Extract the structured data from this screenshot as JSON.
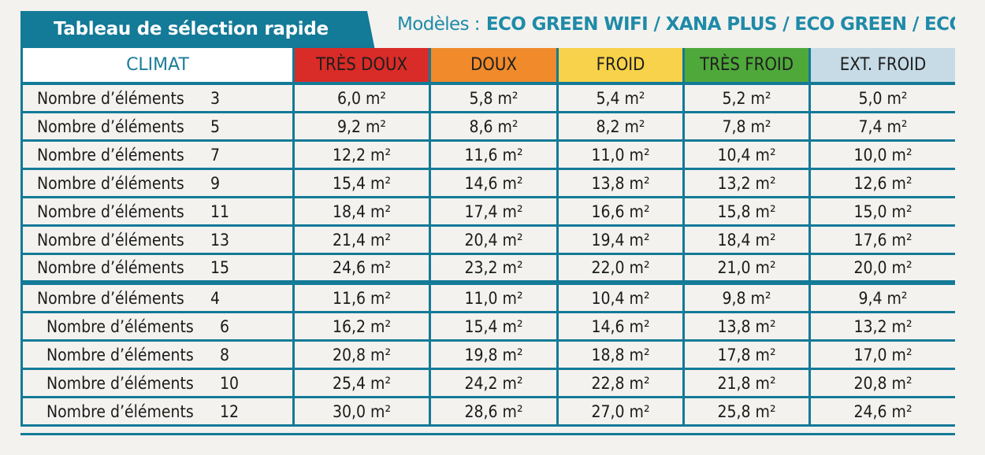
{
  "header": {
    "title": "Tableau de sélection rapide",
    "models_label": "Modèles :",
    "models_names": "ECO GREEN WIFI / XANA PLUS / ECO GREEN / ECO R"
  },
  "table": {
    "columns": [
      {
        "label": "CLIMAT",
        "color": "#ffffff"
      },
      {
        "label": "TRÈS DOUX",
        "color": "#d92b27"
      },
      {
        "label": "DOUX",
        "color": "#f08a2b"
      },
      {
        "label": "FROID",
        "color": "#f7d24a"
      },
      {
        "label": "TRÈS FROID",
        "color": "#4fa83a"
      },
      {
        "label": "EXT. FROID",
        "color": "#c6dbe6"
      }
    ],
    "rows": [
      {
        "label": "Nombre d’éléments",
        "n": "3",
        "values": [
          "6,0 m²",
          "5,8 m²",
          "5,4 m²",
          "5,2 m²",
          "5,0 m²"
        ]
      },
      {
        "label": "Nombre d’éléments",
        "n": "5",
        "values": [
          "9,2 m²",
          "8,6 m²",
          "8,2 m²",
          "7,8 m²",
          "7,4 m²"
        ]
      },
      {
        "label": "Nombre d’éléments",
        "n": "7",
        "values": [
          "12,2 m²",
          "11,6 m²",
          "11,0 m²",
          "10,4 m²",
          "10,0 m²"
        ]
      },
      {
        "label": "Nombre d’éléments",
        "n": "9",
        "values": [
          "15,4 m²",
          "14,6 m²",
          "13,8 m²",
          "13,2 m²",
          "12,6 m²"
        ]
      },
      {
        "label": "Nombre d’éléments",
        "n": "11",
        "values": [
          "18,4 m²",
          "17,4 m²",
          "16,6 m²",
          "15,8 m²",
          "15,0 m²"
        ]
      },
      {
        "label": "Nombre d’éléments",
        "n": "13",
        "values": [
          "21,4 m²",
          "20,4 m²",
          "19,4 m²",
          "18,4 m²",
          "17,6 m²"
        ]
      },
      {
        "label": "Nombre d’éléments",
        "n": "15",
        "values": [
          "24,6 m²",
          "23,2 m²",
          "22,0 m²",
          "21,0 m²",
          "20,0 m²"
        ]
      },
      {
        "label": "Nombre d’éléments",
        "n": "4",
        "values": [
          "11,6 m²",
          "11,0 m²",
          "10,4 m²",
          "9,8 m²",
          "9,4 m²"
        ]
      },
      {
        "label": "Nombre d’éléments",
        "n": "6",
        "values": [
          "16,2 m²",
          "15,4 m²",
          "14,6 m²",
          "13,8 m²",
          "13,2 m²"
        ]
      },
      {
        "label": "Nombre d’éléments",
        "n": "8",
        "values": [
          "20,8 m²",
          "19,8 m²",
          "18,8 m²",
          "17,8 m²",
          "17,0 m²"
        ]
      },
      {
        "label": "Nombre d’éléments",
        "n": "10",
        "values": [
          "25,4 m²",
          "24,2 m²",
          "22,8 m²",
          "21,8 m²",
          "20,8 m²"
        ]
      },
      {
        "label": "Nombre d’éléments",
        "n": "12",
        "values": [
          "30,0 m²",
          "28,6 m²",
          "27,0 m²",
          "25,8 m²",
          "24,6 m²"
        ]
      }
    ]
  },
  "colors": {
    "accent": "#137a97",
    "models_text": "#1f8aa8"
  }
}
